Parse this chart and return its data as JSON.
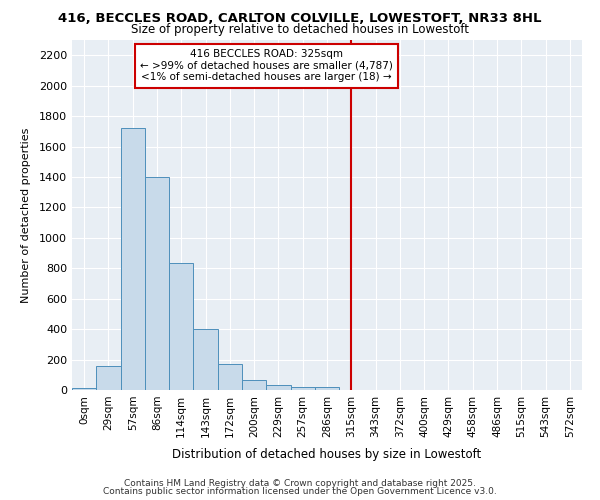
{
  "title_line1": "416, BECCLES ROAD, CARLTON COLVILLE, LOWESTOFT, NR33 8HL",
  "title_line2": "Size of property relative to detached houses in Lowestoft",
  "xlabel": "Distribution of detached houses by size in Lowestoft",
  "ylabel": "Number of detached properties",
  "bar_labels": [
    "0sqm",
    "29sqm",
    "57sqm",
    "86sqm",
    "114sqm",
    "143sqm",
    "172sqm",
    "200sqm",
    "229sqm",
    "257sqm",
    "286sqm",
    "315sqm",
    "343sqm",
    "372sqm",
    "400sqm",
    "429sqm",
    "458sqm",
    "486sqm",
    "515sqm",
    "543sqm",
    "572sqm"
  ],
  "bar_values": [
    10,
    160,
    1720,
    1400,
    835,
    400,
    170,
    65,
    30,
    22,
    20,
    0,
    0,
    0,
    0,
    0,
    0,
    0,
    0,
    0,
    0
  ],
  "bar_color": "#c8daea",
  "bar_edge_color": "#4d8fbb",
  "vertical_line_color": "#cc0000",
  "annotation_title": "416 BECCLES ROAD: 325sqm",
  "annotation_line1": "← >99% of detached houses are smaller (4,787)",
  "annotation_line2": "<1% of semi-detached houses are larger (18) →",
  "annotation_box_facecolor": "white",
  "annotation_box_edgecolor": "#cc0000",
  "ylim": [
    0,
    2300
  ],
  "yticks": [
    0,
    200,
    400,
    600,
    800,
    1000,
    1200,
    1400,
    1600,
    1800,
    2000,
    2200
  ],
  "bg_color": "#ffffff",
  "plot_bg_color": "#e8eef4",
  "grid_color": "#ffffff",
  "footnote_line1": "Contains HM Land Registry data © Crown copyright and database right 2025.",
  "footnote_line2": "Contains public sector information licensed under the Open Government Licence v3.0."
}
